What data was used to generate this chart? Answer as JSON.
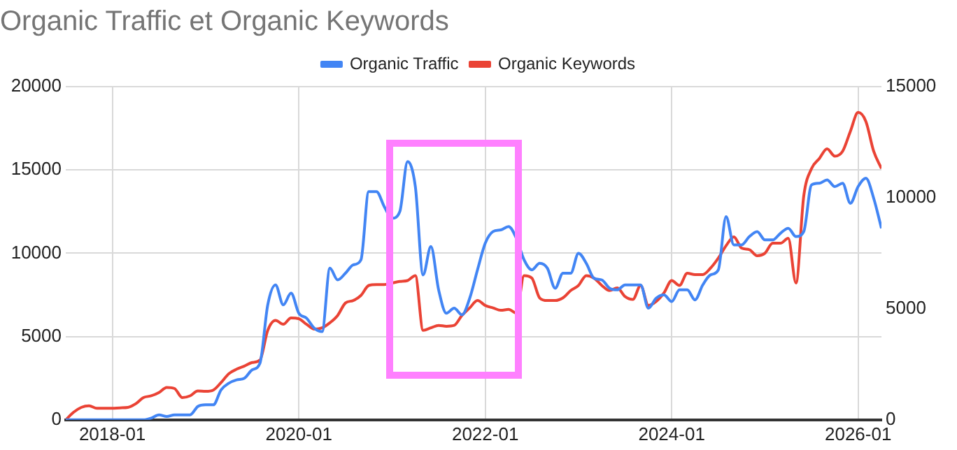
{
  "chart_data": {
    "type": "line",
    "title": "Organic Traffic et Organic Keywords",
    "legend": "top",
    "grid": true,
    "x": [
      "2017-07",
      "2017-08",
      "2017-09",
      "2017-10",
      "2017-11",
      "2017-12",
      "2018-01",
      "2018-02",
      "2018-03",
      "2018-04",
      "2018-05",
      "2018-06",
      "2018-07",
      "2018-08",
      "2018-09",
      "2018-10",
      "2018-11",
      "2018-12",
      "2019-01",
      "2019-02",
      "2019-03",
      "2019-04",
      "2019-05",
      "2019-06",
      "2019-07",
      "2019-08",
      "2019-09",
      "2019-10",
      "2019-11",
      "2019-12",
      "2020-01",
      "2020-02",
      "2020-03",
      "2020-04",
      "2020-05",
      "2020-06",
      "2020-07",
      "2020-08",
      "2020-09",
      "2020-10",
      "2020-11",
      "2020-12",
      "2021-01",
      "2021-02",
      "2021-03",
      "2021-04",
      "2021-05",
      "2021-06",
      "2021-07",
      "2021-08",
      "2021-09",
      "2021-10",
      "2021-11",
      "2021-12",
      "2022-01",
      "2022-02",
      "2022-03",
      "2022-04",
      "2022-05",
      "2022-06",
      "2022-07",
      "2022-08",
      "2022-09",
      "2022-10",
      "2022-11",
      "2022-12",
      "2023-01",
      "2023-02",
      "2023-03",
      "2023-04",
      "2023-05",
      "2023-06",
      "2023-07",
      "2023-08",
      "2023-09",
      "2023-10",
      "2023-11",
      "2023-12",
      "2024-01",
      "2024-02",
      "2024-03",
      "2024-04",
      "2024-05",
      "2024-06",
      "2024-07",
      "2024-08",
      "2024-09",
      "2024-10",
      "2024-11",
      "2024-12",
      "2025-01",
      "2025-02",
      "2025-03",
      "2025-04",
      "2025-05",
      "2025-06",
      "2025-07",
      "2025-08",
      "2025-09",
      "2025-10",
      "2025-11",
      "2025-12",
      "2026-01",
      "2026-02",
      "2026-03",
      "2026-04"
    ],
    "xlim": [
      "2017-07",
      "2026-04"
    ],
    "xticks": [
      "2018-01",
      "2020-01",
      "2022-01",
      "2024-01",
      "2026-01"
    ],
    "ylim": [
      0,
      20000
    ],
    "yticks": [
      0,
      5000,
      10000,
      15000,
      20000
    ],
    "y2lim": [
      0,
      15000
    ],
    "y2ticks": [
      0,
      5000,
      10000,
      15000
    ],
    "series": [
      {
        "name": "Organic Traffic",
        "color": "#4285f4",
        "values": [
          0,
          0,
          0,
          0,
          0,
          0,
          0,
          0,
          0,
          0,
          0,
          100,
          300,
          200,
          300,
          300,
          300,
          800,
          900,
          900,
          1800,
          2200,
          2400,
          2500,
          3000,
          3400,
          6900,
          8100,
          6900,
          7600,
          6400,
          6100,
          5500,
          5300,
          9100,
          8400,
          8800,
          9300,
          9600,
          13700,
          13700,
          12800,
          12100,
          12500,
          15500,
          14000,
          8700,
          10400,
          7800,
          6400,
          6700,
          6300,
          7300,
          9000,
          10600,
          11300,
          11400,
          11600,
          10900,
          9600,
          9000,
          9400,
          9100,
          7900,
          8800,
          8800,
          10000,
          9400,
          8500,
          8400,
          7900,
          7800,
          8100,
          8100,
          8100,
          6700,
          7300,
          7500,
          7100,
          7800,
          7800,
          7200,
          8100,
          8700,
          9000,
          12200,
          10500,
          10500,
          11000,
          11300,
          10800,
          10800,
          11200,
          11500,
          11000,
          11300,
          14100,
          14200,
          14400,
          14000,
          14200,
          13000,
          14000,
          14500,
          13300,
          11500
        ]
      },
      {
        "name": "Organic Keywords",
        "color": "#ea4335",
        "axis": "y2",
        "values": [
          0,
          340,
          560,
          630,
          520,
          520,
          520,
          540,
          560,
          720,
          1000,
          1080,
          1230,
          1460,
          1410,
          1000,
          1080,
          1300,
          1280,
          1340,
          1680,
          2080,
          2280,
          2420,
          2580,
          2690,
          4030,
          4480,
          4300,
          4590,
          4550,
          4300,
          4080,
          4140,
          4370,
          4700,
          5260,
          5370,
          5600,
          6050,
          6090,
          6090,
          6160,
          6230,
          6270,
          6490,
          4030,
          4140,
          4250,
          4210,
          4250,
          4700,
          5040,
          5370,
          5150,
          5040,
          4930,
          4970,
          4810,
          6490,
          6380,
          5490,
          5370,
          5370,
          5490,
          5820,
          6050,
          6490,
          6380,
          6050,
          5820,
          5940,
          5550,
          5420,
          6050,
          5150,
          5330,
          5710,
          6270,
          6050,
          6600,
          6540,
          6540,
          6830,
          7280,
          7840,
          8240,
          7730,
          7660,
          7390,
          7500,
          7950,
          7950,
          8170,
          6160,
          10080,
          11310,
          11760,
          12200,
          11870,
          12090,
          12990,
          13840,
          13430,
          12090,
          11310
        ]
      }
    ]
  }
}
